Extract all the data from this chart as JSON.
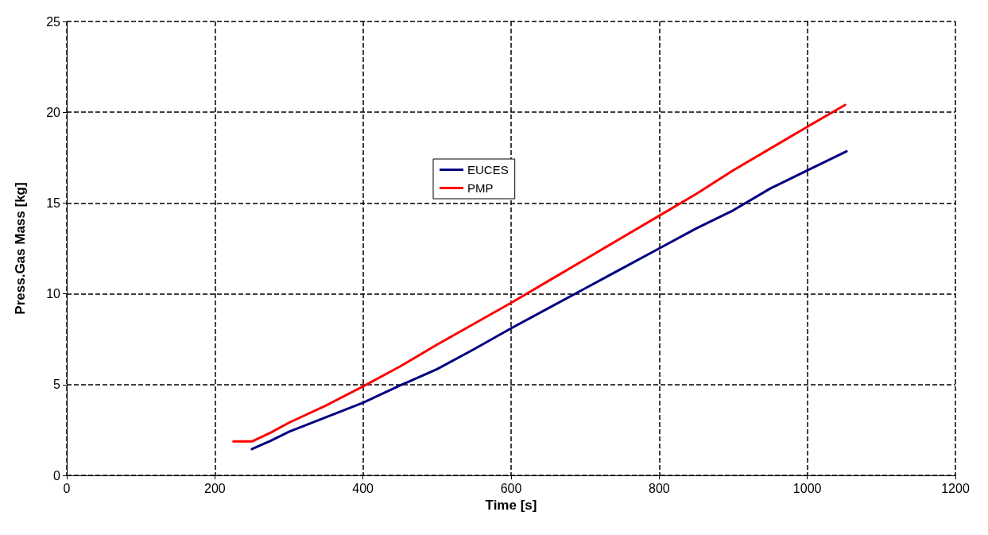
{
  "chart_data": {
    "type": "line",
    "xlabel": "Time [s]",
    "ylabel": "Press.Gas Mass [kg]",
    "xlim": [
      0,
      1200
    ],
    "xticks": [
      0,
      200,
      400,
      600,
      800,
      1000,
      1200
    ],
    "ylim": [
      0,
      25
    ],
    "yticks": [
      0,
      5,
      10,
      15,
      20,
      25
    ],
    "grid": true,
    "legend": "center",
    "marker": "none",
    "line_style": "solid",
    "series": [
      {
        "name": "EUCES",
        "color": "#000080",
        "x": [
          250,
          275,
          300,
          350,
          400,
          450,
          500,
          550,
          600,
          650,
          700,
          750,
          800,
          850,
          900,
          950,
          1000,
          1053
        ],
        "values": [
          1.45,
          1.9,
          2.4,
          3.2,
          4.0,
          4.95,
          5.85,
          6.95,
          8.1,
          9.2,
          10.3,
          11.4,
          12.5,
          13.6,
          14.6,
          15.8,
          16.8,
          17.85
        ]
      },
      {
        "name": "PMP",
        "color": "#ff0000",
        "x": [
          225,
          250,
          275,
          300,
          350,
          400,
          450,
          500,
          550,
          600,
          650,
          700,
          750,
          800,
          850,
          900,
          950,
          1000,
          1051
        ],
        "values": [
          1.87,
          1.87,
          2.35,
          2.9,
          3.85,
          4.9,
          6.0,
          7.2,
          8.35,
          9.5,
          10.7,
          11.9,
          13.1,
          14.3,
          15.5,
          16.8,
          18.0,
          19.2,
          20.4
        ]
      }
    ]
  }
}
